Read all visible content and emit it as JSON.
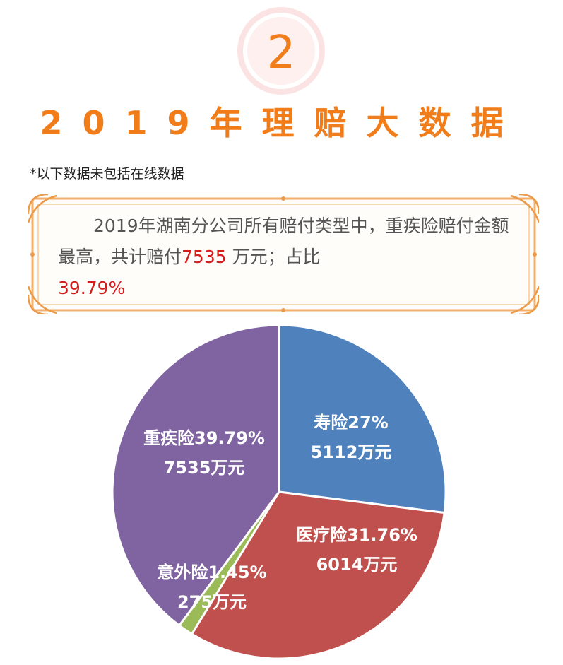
{
  "header": {
    "step_number": "2",
    "title": "2019年理赔大数据",
    "note": "*以下数据未包括在线数据"
  },
  "summary": {
    "text_before": "2019年湖南分公司所有赔付类型中，重疾险赔付金额最高，共计赔付",
    "amount": "7535",
    "text_middle": " 万元；占比",
    "percent": "39.79%"
  },
  "colors": {
    "orange": "#f07c1a",
    "highlight_red": "#d21c1c"
  },
  "chart_data": {
    "type": "pie",
    "slices": [
      {
        "name": "寿险",
        "percent": 27,
        "percent_label": "27%",
        "value_label": "5112万元",
        "value": 5112,
        "color": "#4f81bd"
      },
      {
        "name": "医疗险",
        "percent": 31.76,
        "percent_label": "31.76%",
        "value_label": "6014万元",
        "value": 6014,
        "color": "#c0504d"
      },
      {
        "name": "意外险",
        "percent": 1.45,
        "percent_label": "1.45%",
        "value_label": "275万元",
        "value": 275,
        "color": "#9bbb59"
      },
      {
        "name": "重疾险",
        "percent": 39.79,
        "percent_label": "39.79%",
        "value_label": "7535万元",
        "value": 7535,
        "color": "#8064a2"
      }
    ]
  }
}
